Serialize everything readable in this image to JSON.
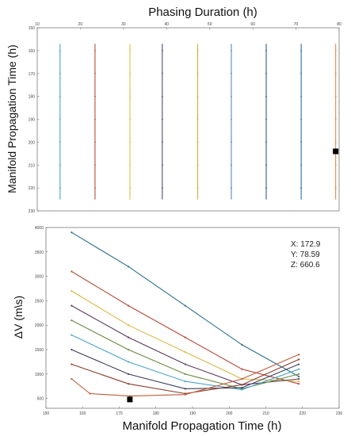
{
  "chart_data": [
    {
      "type": "line",
      "title": "",
      "xlabel_top": "Phasing Duration (h)",
      "ylabel": "Manifold Propagation Time (h)",
      "x_top_ticks": [
        "10",
        "20",
        "30",
        "40",
        "50",
        "60",
        "70",
        "80"
      ],
      "y_ticks": [
        "150",
        "160",
        "170",
        "180",
        "190",
        "200",
        "210",
        "220",
        "230"
      ],
      "xlim": [
        10,
        80
      ],
      "ylim": [
        150,
        230
      ],
      "y_reversed": true,
      "grid": false,
      "series": [
        {
          "color": "#4aa3c8",
          "x": [
            15.3,
            15.3
          ],
          "y": [
            157,
            225
          ]
        },
        {
          "color": "#b4533a",
          "x": [
            23.4,
            23.4
          ],
          "y": [
            157,
            225
          ]
        },
        {
          "color": "#d8c24a",
          "x": [
            31.5,
            31.5
          ],
          "y": [
            157,
            225
          ]
        },
        {
          "color": "#4a4f72",
          "x": [
            39.0,
            39.0
          ],
          "y": [
            157,
            225
          ]
        },
        {
          "color": "#c9b23e",
          "x": [
            47.2,
            47.2
          ],
          "y": [
            157,
            225
          ]
        },
        {
          "color": "#5a8ab8",
          "x": [
            55.0,
            55.0
          ],
          "y": [
            157,
            225
          ]
        },
        {
          "color": "#3d5a80",
          "x": [
            63.1,
            63.1
          ],
          "y": [
            157,
            225
          ]
        },
        {
          "color": "#2f6d9e",
          "x": [
            71.2,
            71.2
          ],
          "y": [
            157,
            225
          ]
        },
        {
          "color": "#e08a4a",
          "x": [
            79.2,
            79.2
          ],
          "y": [
            157,
            225
          ]
        }
      ],
      "marker": {
        "x": 79.2,
        "y": 204
      }
    },
    {
      "type": "line",
      "title": "",
      "xlabel": "Manifold Propagation Time (h)",
      "ylabel": "ΔV (m\\s)",
      "x_ticks": [
        "150",
        "160",
        "170",
        "180",
        "190",
        "200",
        "210",
        "220",
        "230"
      ],
      "y_ticks": [
        "500",
        "1000",
        "1500",
        "2000",
        "2500",
        "3000",
        "3500",
        "4000"
      ],
      "xlim": [
        150,
        230
      ],
      "ylim": [
        300,
        4000
      ],
      "grid": false,
      "series": [
        {
          "color": "#2e6f8e",
          "x": [
            157,
            172.5,
            188,
            203.5,
            219
          ],
          "y": [
            3900,
            3200,
            2400,
            1600,
            950
          ]
        },
        {
          "color": "#b44a3a",
          "x": [
            157,
            172.5,
            188,
            203.5,
            219
          ],
          "y": [
            3100,
            2400,
            1750,
            1100,
            800
          ]
        },
        {
          "color": "#d8b84a",
          "x": [
            157,
            172.5,
            188,
            203.5,
            219
          ],
          "y": [
            2700,
            2000,
            1450,
            900,
            850
          ]
        },
        {
          "color": "#5a3a5a",
          "x": [
            157,
            172.5,
            188,
            203.5,
            219
          ],
          "y": [
            2400,
            1750,
            1200,
            780,
            900
          ]
        },
        {
          "color": "#6a8a3e",
          "x": [
            157,
            172.5,
            188,
            203.5,
            219
          ],
          "y": [
            2100,
            1500,
            1000,
            700,
            1000
          ]
        },
        {
          "color": "#4aa3c8",
          "x": [
            157,
            172.5,
            188,
            203.5,
            219
          ],
          "y": [
            1800,
            1250,
            850,
            680,
            1100
          ]
        },
        {
          "color": "#3d3d5c",
          "x": [
            157,
            172.5,
            188,
            203.5,
            219
          ],
          "y": [
            1500,
            1000,
            700,
            720,
            1200
          ]
        },
        {
          "color": "#8a3a2a",
          "x": [
            157,
            172.5,
            188,
            203.5,
            219
          ],
          "y": [
            1200,
            800,
            600,
            780,
            1300
          ]
        },
        {
          "color": "#c05a3a",
          "x": [
            157,
            162,
            172.9,
            188,
            203.5,
            219
          ],
          "y": [
            900,
            600,
            550,
            580,
            900,
            1400
          ]
        }
      ],
      "marker": {
        "x": 172.9,
        "y": 480
      },
      "datatip": {
        "x_label": "X: 172.9",
        "y_label": "Y: 78.59",
        "z_label": "Z: 660.6"
      }
    }
  ]
}
